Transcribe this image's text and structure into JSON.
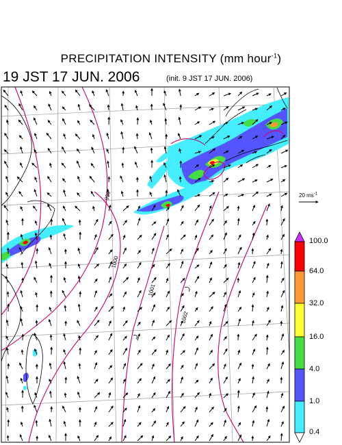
{
  "title": {
    "main": "PRECIPITATION INTENSITY (mm hour",
    "unit_sup": "-1",
    "unit_close": ")",
    "valid_time": "19 JST 17 JUN. 2006",
    "init_time": "(init. 9 JST 17 JUN. 2006)"
  },
  "vector_reference": {
    "value": "20 ms",
    "sup": "-1"
  },
  "colorbar": {
    "levels": [
      "100.0",
      "64.0",
      "32.0",
      "16.0",
      "4.0",
      "1.0",
      "0.4"
    ],
    "colors": [
      "#cc33ff",
      "#ff0000",
      "#ff9933",
      "#ffff33",
      "#44dd44",
      "#5555ff",
      "#44eeff",
      "#ffffff"
    ]
  },
  "contour_labels": [
    "999",
    "1000",
    "1001",
    "1002"
  ],
  "colors": {
    "contour": "#cc0066",
    "coast": "#000000",
    "grid": "#999999"
  }
}
